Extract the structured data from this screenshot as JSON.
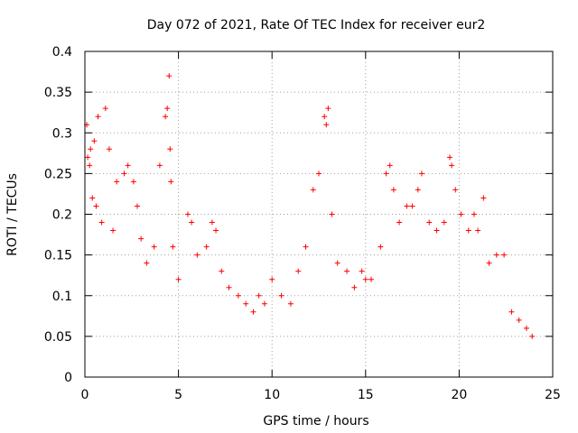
{
  "chart_data": {
    "type": "scatter",
    "title": "Day 072 of 2021, Rate Of TEC Index for receiver eur2",
    "xlabel": "GPS time / hours",
    "ylabel": "ROTI / TECUs",
    "xlim": [
      0,
      25
    ],
    "ylim": [
      0,
      0.4
    ],
    "x_ticks": [
      "0",
      "5",
      "10",
      "15",
      "20",
      "25"
    ],
    "y_ticks": [
      "0",
      "0.05",
      "0.1",
      "0.15",
      "0.2",
      "0.25",
      "0.3",
      "0.35",
      "0.4"
    ],
    "grid": true,
    "marker": "+",
    "color": "#ff0000",
    "series": [
      {
        "x": [
          0.1,
          0.15,
          0.25,
          0.3,
          0.4,
          0.5,
          0.6,
          0.7,
          0.9,
          1.1,
          1.3,
          1.5,
          1.7,
          2.1,
          2.3,
          2.6,
          2.8,
          3.0,
          3.3,
          3.7,
          4.0,
          4.3,
          4.4,
          4.5,
          4.55,
          4.6,
          4.7,
          5.0,
          5.5,
          5.7,
          6.0,
          6.5,
          6.8,
          7.0,
          7.3,
          7.7,
          8.2,
          8.6,
          9.0,
          9.3,
          9.6,
          10.0,
          10.5,
          11.0,
          11.4,
          11.8,
          12.2,
          12.5,
          12.8,
          12.9,
          13.0,
          13.2,
          13.5,
          14.0,
          14.4,
          14.8,
          15.0,
          15.3,
          15.8,
          16.1,
          16.3,
          16.5,
          16.8,
          17.2,
          17.5,
          17.8,
          18.0,
          18.4,
          18.8,
          19.2,
          19.5,
          19.6,
          19.8,
          20.1,
          20.5,
          20.8,
          21.0,
          21.3,
          21.6,
          22.0,
          22.4,
          22.8,
          23.2,
          23.6,
          23.9
        ],
        "y": [
          0.31,
          0.27,
          0.26,
          0.28,
          0.22,
          0.29,
          0.21,
          0.32,
          0.19,
          0.33,
          0.28,
          0.18,
          0.24,
          0.25,
          0.26,
          0.24,
          0.21,
          0.17,
          0.14,
          0.16,
          0.26,
          0.32,
          0.33,
          0.37,
          0.28,
          0.24,
          0.16,
          0.12,
          0.2,
          0.19,
          0.15,
          0.16,
          0.19,
          0.18,
          0.13,
          0.11,
          0.1,
          0.09,
          0.08,
          0.1,
          0.09,
          0.12,
          0.1,
          0.09,
          0.13,
          0.16,
          0.23,
          0.25,
          0.32,
          0.31,
          0.33,
          0.2,
          0.14,
          0.13,
          0.11,
          0.13,
          0.12,
          0.12,
          0.16,
          0.25,
          0.26,
          0.23,
          0.19,
          0.21,
          0.21,
          0.23,
          0.25,
          0.19,
          0.18,
          0.19,
          0.27,
          0.26,
          0.23,
          0.2,
          0.18,
          0.2,
          0.18,
          0.22,
          0.14,
          0.15,
          0.15,
          0.08,
          0.07,
          0.06,
          0.05
        ]
      }
    ]
  }
}
